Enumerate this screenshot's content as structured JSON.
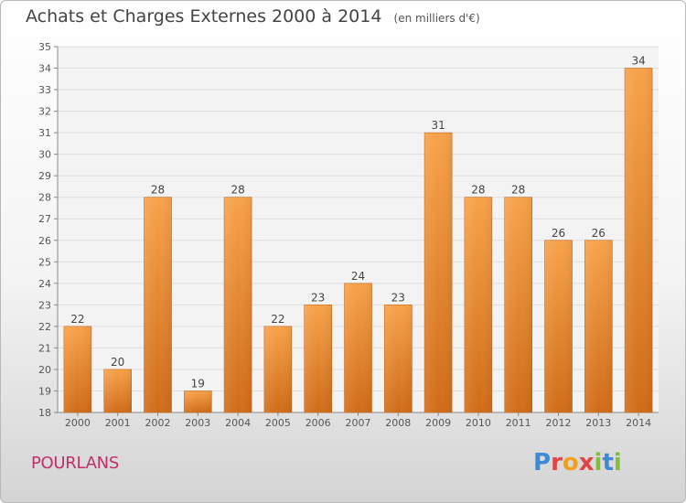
{
  "chart_data": {
    "type": "bar",
    "title": "Achats et Charges Externes 2000 à 2014",
    "subtitle": "(en milliers d'€)",
    "categories": [
      "2000",
      "2001",
      "2002",
      "2003",
      "2004",
      "2005",
      "2006",
      "2007",
      "2008",
      "2009",
      "2010",
      "2011",
      "2012",
      "2013",
      "2014"
    ],
    "values": [
      22,
      20,
      28,
      19,
      28,
      22,
      23,
      24,
      23,
      31,
      28,
      28,
      26,
      26,
      34
    ],
    "ylim": [
      18,
      35
    ],
    "yticks": [
      18,
      19,
      20,
      21,
      22,
      23,
      24,
      25,
      26,
      27,
      28,
      29,
      30,
      31,
      32,
      33,
      34,
      35
    ],
    "grid": true,
    "bar_color": "#f0963a",
    "bar_color_dark": "#d2701a"
  },
  "footer": {
    "commune": "POURLANS",
    "logo_text": "Proxiti"
  }
}
